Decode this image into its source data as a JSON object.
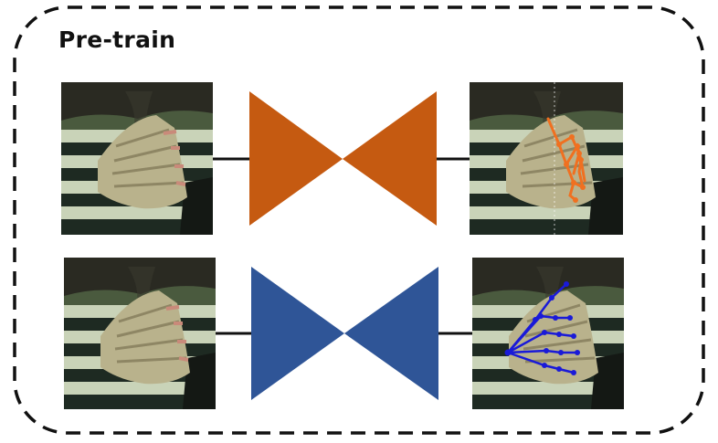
{
  "title": "Pre-train",
  "colors": {
    "frame_border": "#111111",
    "connector_line": "#111111",
    "bowtie_top": "#c55a11",
    "bowtie_bottom": "#2f5597",
    "skeleton_orange": "#f07020",
    "skeleton_blue": "#1a1ad8",
    "photo_background": "#4a5a3e",
    "photo_stripe_light": "#c9d3b8",
    "photo_stripe_dark": "#1e2a22",
    "photo_skin": "#b9b28c"
  },
  "rows": [
    {
      "input_image": "hands-photo",
      "model_shape": "bowtie-encoder-decoder",
      "model_color": "#c55a11",
      "output_image": "hands-photo-with-orange-skeleton"
    },
    {
      "input_image": "hands-photo",
      "model_shape": "bowtie-encoder-decoder",
      "model_color": "#2f5597",
      "output_image": "hands-photo-with-blue-skeleton"
    }
  ]
}
